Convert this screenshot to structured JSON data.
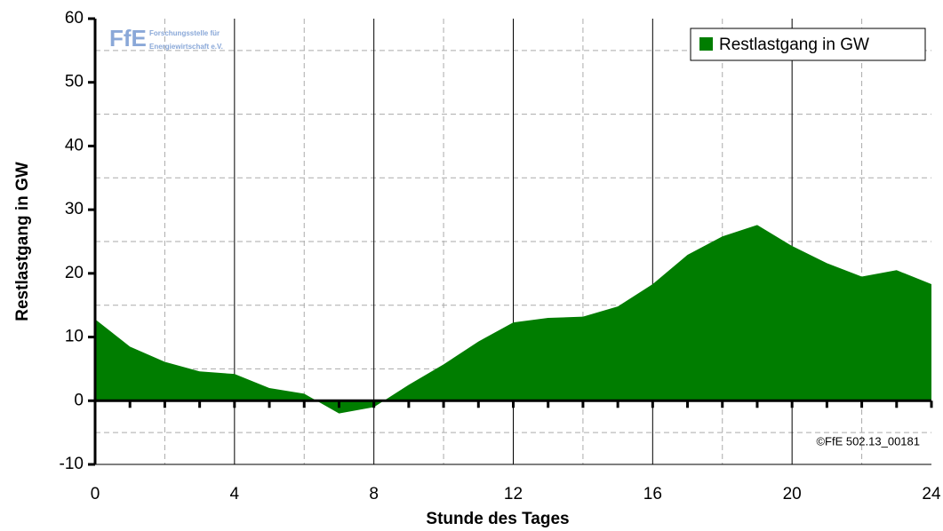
{
  "chart_data": {
    "type": "area",
    "x_label": "Stunde des Tages",
    "y_label": "Restlastgang in GW",
    "x": [
      0,
      1,
      2,
      3,
      4,
      5,
      6,
      7,
      8,
      9,
      10,
      11,
      12,
      13,
      14,
      15,
      16,
      17,
      18,
      19,
      20,
      21,
      22,
      23,
      24
    ],
    "series": [
      {
        "name": "Restlastgang in GW",
        "color": "#007d00",
        "values": [
          12.8,
          8.5,
          6.1,
          4.6,
          4.2,
          2.0,
          1.1,
          -2.0,
          -1.0,
          2.5,
          5.7,
          9.3,
          12.3,
          13.0,
          13.2,
          14.8,
          18.3,
          22.9,
          25.8,
          27.6,
          24.3,
          21.6,
          19.5,
          20.5,
          18.3
        ]
      }
    ],
    "xlim": [
      0,
      24
    ],
    "xticks": [
      0,
      4,
      8,
      12,
      16,
      20,
      24
    ],
    "xminor": [
      2,
      6,
      10,
      14,
      18,
      22
    ],
    "ylim": [
      -10,
      60
    ],
    "yticks": [
      -10,
      0,
      10,
      20,
      30,
      40,
      50,
      60
    ],
    "yminor": [
      -5,
      5,
      15,
      25,
      35,
      45,
      55
    ],
    "grid": true,
    "legend": "top-right",
    "logo": [
      "FfE",
      "Forschungsstelle für",
      "Energiewirtschaft e.V."
    ],
    "copyright": "©FfE 502.13_00181"
  }
}
